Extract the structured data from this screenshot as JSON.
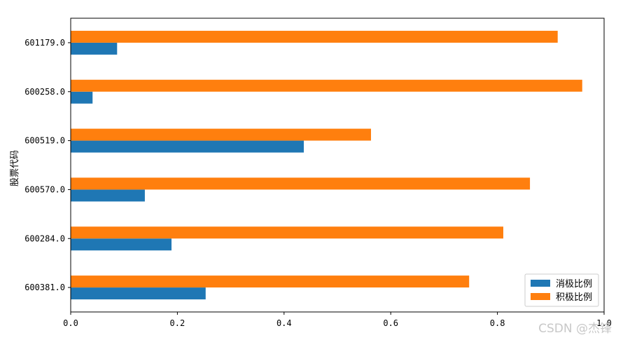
{
  "chart_data": {
    "type": "bar",
    "orientation": "horizontal",
    "title": "",
    "xlabel": "",
    "ylabel": "股票代码",
    "xlim": [
      0,
      1.0
    ],
    "x_ticks": [
      0.0,
      0.2,
      0.4,
      0.6,
      0.8,
      1.0
    ],
    "x_tick_labels": [
      "0.0",
      "0.2",
      "0.4",
      "0.6",
      "0.8",
      "1.0"
    ],
    "categories": [
      "600381.0",
      "600284.0",
      "600570.0",
      "600519.0",
      "600258.0",
      "601179.0"
    ],
    "series": [
      {
        "name": "消极比例",
        "color": "#1f77b4",
        "values": [
          0.253,
          0.189,
          0.139,
          0.437,
          0.041,
          0.087
        ]
      },
      {
        "name": "积极比例",
        "color": "#ff7f0e",
        "values": [
          0.747,
          0.811,
          0.861,
          0.563,
          0.959,
          0.913
        ]
      }
    ],
    "legend_position": "bottom-right",
    "grid": false
  },
  "watermark": "CSDN @杰锋"
}
